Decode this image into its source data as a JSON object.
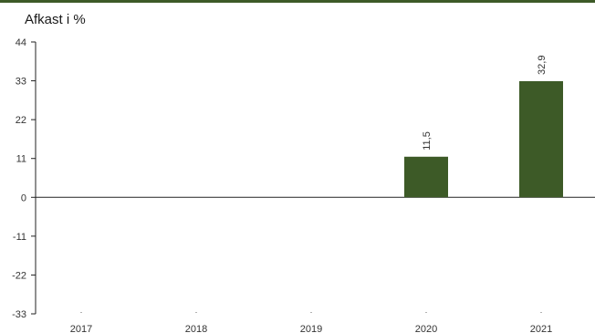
{
  "chart_data": {
    "type": "bar",
    "title": "Afkast i %",
    "xlabel": "",
    "ylabel": "",
    "categories": [
      "2017",
      "2018",
      "2019",
      "2020",
      "2021"
    ],
    "values": [
      null,
      null,
      null,
      11.5,
      32.9
    ],
    "value_labels": [
      "",
      "",
      "",
      "11,5",
      "32,9"
    ],
    "ylim": [
      -33,
      44
    ],
    "yticks": [
      44,
      33,
      22,
      11,
      0,
      -11,
      -22,
      -33
    ],
    "bar_color": "#3d5a27",
    "grid": false,
    "legend": "none"
  }
}
